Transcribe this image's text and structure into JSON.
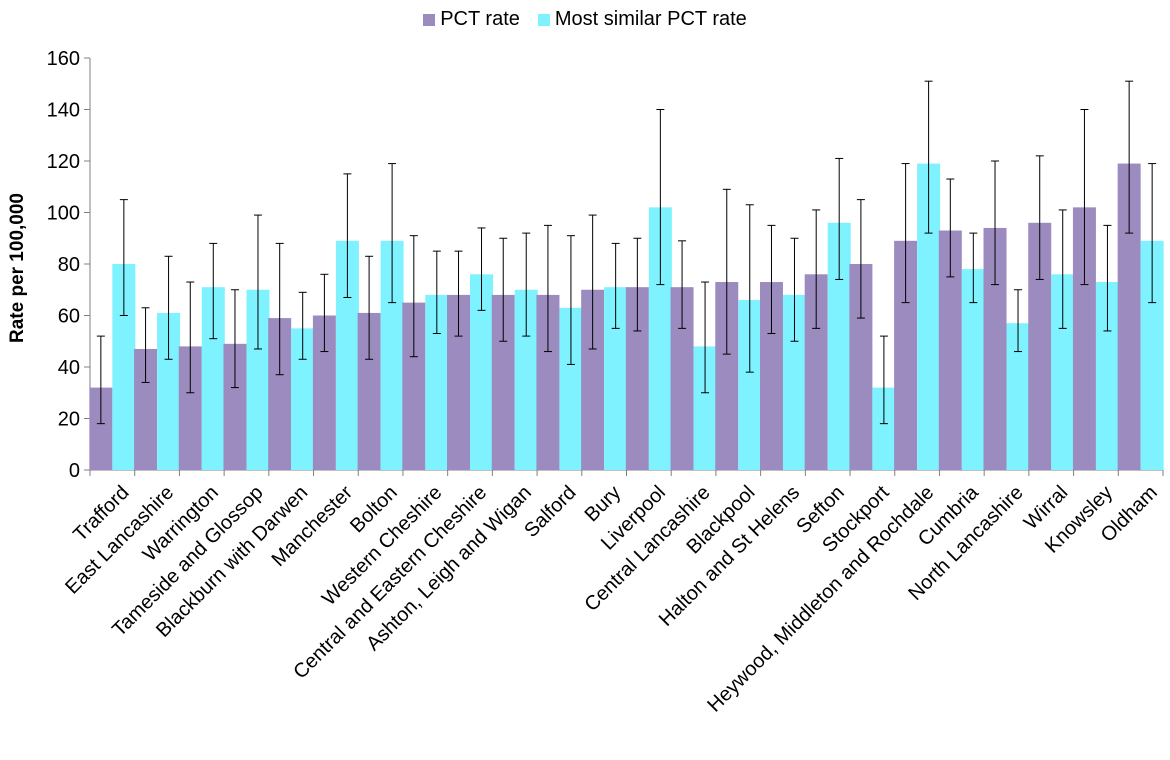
{
  "chart_data": {
    "type": "bar",
    "title": "",
    "xlabel": "",
    "ylabel": "Rate per 100,000",
    "ylim": [
      0,
      160
    ],
    "yticks": [
      0,
      20,
      40,
      60,
      80,
      100,
      120,
      140,
      160
    ],
    "grid": false,
    "legend_position": "top-center",
    "categories": [
      "Trafford",
      "East Lancashire",
      "Warrington",
      "Tameside and Glossop",
      "Blackburn with Darwen",
      "Manchester",
      "Bolton",
      "Western Cheshire",
      "Central and Eastern Cheshire",
      "Ashton, Leigh and Wigan",
      "Salford",
      "Bury",
      "Liverpool",
      "Central Lancashire",
      "Blackpool",
      "Halton and St Helens",
      "Sefton",
      "Stockport",
      "Heywood, Middleton and Rochdale",
      "Cumbria",
      "North Lancashire",
      "Wirral",
      "Knowsley",
      "Oldham"
    ],
    "series": [
      {
        "name": "PCT rate",
        "color": "#9b8bbf",
        "values": [
          32,
          47,
          48,
          49,
          59,
          60,
          61,
          65,
          68,
          68,
          68,
          70,
          71,
          71,
          73,
          73,
          76,
          80,
          89,
          93,
          94,
          96,
          102,
          119
        ],
        "error_low": [
          18,
          34,
          30,
          32,
          37,
          46,
          43,
          44,
          52,
          50,
          46,
          47,
          54,
          55,
          45,
          53,
          55,
          59,
          65,
          75,
          72,
          74,
          72,
          92
        ],
        "error_high": [
          52,
          63,
          73,
          70,
          88,
          76,
          83,
          91,
          85,
          90,
          95,
          99,
          90,
          89,
          109,
          95,
          101,
          105,
          119,
          113,
          120,
          122,
          140,
          151
        ]
      },
      {
        "name": "Most similar PCT rate",
        "color": "#7ef2ff",
        "values": [
          80,
          61,
          71,
          70,
          55,
          89,
          89,
          68,
          76,
          70,
          63,
          71,
          102,
          48,
          66,
          68,
          96,
          32,
          119,
          78,
          57,
          76,
          73,
          89
        ],
        "error_low": [
          60,
          43,
          51,
          47,
          43,
          67,
          65,
          53,
          62,
          52,
          41,
          55,
          72,
          30,
          38,
          50,
          74,
          18,
          92,
          65,
          46,
          55,
          54,
          65
        ],
        "error_high": [
          105,
          83,
          88,
          99,
          69,
          115,
          119,
          85,
          94,
          92,
          91,
          88,
          140,
          73,
          103,
          90,
          121,
          52,
          151,
          92,
          70,
          101,
          95,
          119
        ]
      }
    ]
  }
}
